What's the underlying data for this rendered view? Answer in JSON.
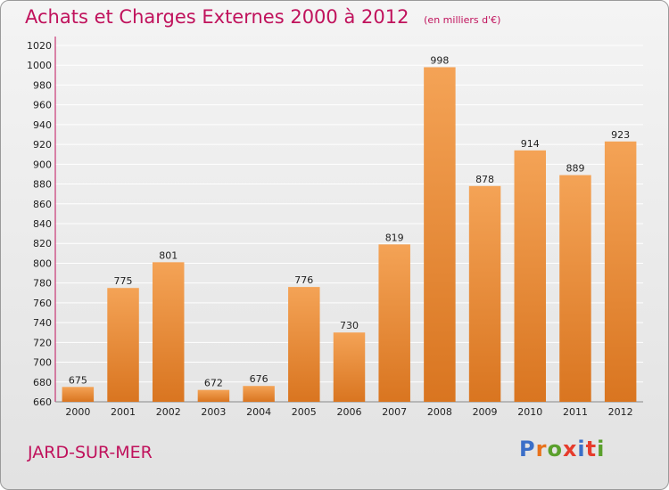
{
  "title": "Achats et Charges Externes 2000 à 2012",
  "subtitle": "(en milliers d'€)",
  "commune": "JARD-SUR-MER",
  "logo": {
    "text": "Proxiti",
    "letter_colors": [
      "#3b6fc8",
      "#e8721c",
      "#5aa02c",
      "#e63c2c",
      "#3b6fc8",
      "#e63c2c",
      "#5aa02c"
    ]
  },
  "colors": {
    "title": "#c0125c",
    "bar_light": "#f4a356",
    "bar_dark": "#d97520",
    "grid": "#ffffff",
    "axis": "#c0125c"
  },
  "chart_data": {
    "type": "bar",
    "categories": [
      "2000",
      "2001",
      "2002",
      "2003",
      "2004",
      "2005",
      "2006",
      "2007",
      "2008",
      "2009",
      "2010",
      "2011",
      "2012"
    ],
    "values": [
      675,
      775,
      801,
      672,
      676,
      776,
      730,
      819,
      998,
      878,
      914,
      889,
      923
    ],
    "ylim": [
      660,
      1020
    ],
    "yticks": [
      660,
      680,
      700,
      720,
      740,
      760,
      780,
      800,
      820,
      840,
      860,
      880,
      900,
      920,
      940,
      960,
      980,
      1000,
      1020
    ],
    "grid": true,
    "data_labels": true
  }
}
